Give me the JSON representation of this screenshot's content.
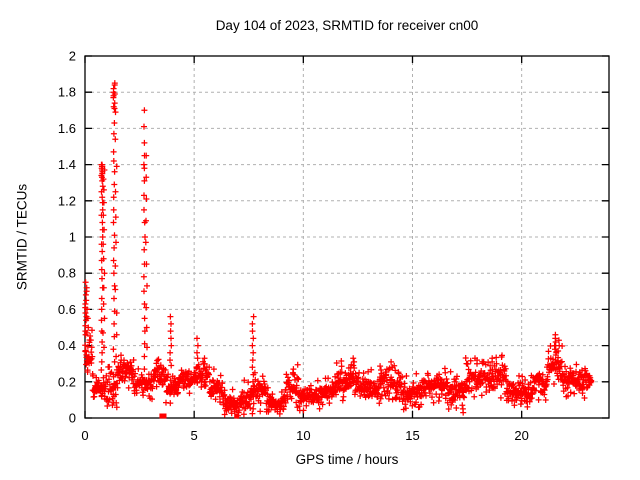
{
  "chart_data": {
    "type": "scatter",
    "title": "Day 104 of 2023, SRMTID for receiver cn00",
    "xlabel": "GPS time / hours",
    "ylabel": "SRMTID / TECUs",
    "xlim": [
      0,
      24
    ],
    "ylim": [
      0,
      2
    ],
    "xticks": [
      0,
      5,
      10,
      15,
      20
    ],
    "yticks": [
      0,
      0.2,
      0.4,
      0.6,
      0.8,
      1,
      1.2,
      1.4,
      1.6,
      1.8,
      2
    ],
    "grid": true,
    "legend": "none",
    "marker": "plus",
    "marker_color": "#ff0000",
    "grid_color": "#b0b0b0",
    "axis_color": "#000000",
    "background": "#ffffff",
    "seed": 104,
    "data_end_hour": 23.2,
    "segment_format": [
      "t0",
      "t1",
      "base",
      "amp",
      "n"
    ],
    "baseline_segments": [
      [
        0.0,
        0.35,
        0.33,
        0.09,
        32
      ],
      [
        0.35,
        0.9,
        0.17,
        0.06,
        40
      ],
      [
        0.9,
        1.5,
        0.16,
        0.07,
        44
      ],
      [
        1.5,
        2.25,
        0.26,
        0.06,
        55
      ],
      [
        2.25,
        3.1,
        0.19,
        0.06,
        60
      ],
      [
        3.1,
        3.7,
        0.23,
        0.06,
        44
      ],
      [
        3.7,
        4.3,
        0.17,
        0.06,
        44
      ],
      [
        4.3,
        5.1,
        0.21,
        0.05,
        58
      ],
      [
        5.1,
        5.7,
        0.24,
        0.06,
        44
      ],
      [
        5.7,
        6.3,
        0.17,
        0.06,
        44
      ],
      [
        6.3,
        7.1,
        0.08,
        0.05,
        58
      ],
      [
        7.1,
        7.7,
        0.11,
        0.06,
        44
      ],
      [
        7.7,
        8.3,
        0.14,
        0.07,
        44
      ],
      [
        8.3,
        9.2,
        0.08,
        0.05,
        65
      ],
      [
        9.2,
        9.8,
        0.17,
        0.07,
        44
      ],
      [
        9.8,
        10.9,
        0.12,
        0.05,
        80
      ],
      [
        10.9,
        11.5,
        0.15,
        0.06,
        44
      ],
      [
        11.5,
        12.6,
        0.2,
        0.07,
        80
      ],
      [
        12.6,
        13.5,
        0.16,
        0.06,
        65
      ],
      [
        13.5,
        14.5,
        0.19,
        0.08,
        72
      ],
      [
        14.5,
        15.5,
        0.14,
        0.06,
        72
      ],
      [
        15.5,
        16.5,
        0.18,
        0.06,
        72
      ],
      [
        16.5,
        17.4,
        0.15,
        0.07,
        65
      ],
      [
        17.4,
        18.3,
        0.21,
        0.07,
        65
      ],
      [
        18.3,
        19.3,
        0.22,
        0.07,
        72
      ],
      [
        19.3,
        20.5,
        0.14,
        0.06,
        86
      ],
      [
        20.5,
        21.2,
        0.2,
        0.07,
        50
      ],
      [
        21.2,
        21.9,
        0.28,
        0.08,
        50
      ],
      [
        21.9,
        22.6,
        0.21,
        0.06,
        50
      ],
      [
        22.6,
        23.2,
        0.2,
        0.06,
        44
      ]
    ],
    "spike_columns": [
      {
        "t": 0.05,
        "ys": [
          0.75,
          0.72,
          0.7,
          0.68,
          0.65,
          0.63,
          0.61,
          0.58,
          0.56,
          0.54,
          0.51,
          0.48,
          0.46
        ]
      },
      {
        "t": 0.12,
        "ys": [
          0.6,
          0.55,
          0.5,
          0.47
        ]
      },
      {
        "t": 0.78,
        "ys": [
          1.4,
          1.4,
          1.39,
          1.39,
          1.38,
          1.38,
          1.37,
          1.36,
          1.35,
          1.34,
          1.33,
          1.31,
          1.28,
          1.25,
          1.22,
          1.19,
          1.15,
          1.12,
          1.08,
          1.04,
          1.0,
          0.96,
          0.92,
          0.87,
          0.82,
          0.77,
          0.72,
          0.66,
          0.6,
          0.54,
          0.48,
          0.42,
          0.36,
          0.31
        ]
      },
      {
        "t": 0.86,
        "ys": [
          1.37,
          1.32,
          1.26,
          1.19,
          1.12,
          1.04,
          0.96,
          0.88,
          0.8,
          0.72,
          0.63,
          0.55,
          0.47,
          0.39
        ]
      },
      {
        "t": 1.33,
        "ys": [
          1.85,
          1.84,
          1.82,
          1.8,
          1.79,
          1.78,
          1.77,
          1.74,
          1.72,
          1.71,
          1.63,
          1.57,
          1.47,
          1.42,
          1.36,
          1.29,
          1.22,
          1.15,
          1.08,
          1.01,
          0.94,
          0.87,
          0.8,
          0.73,
          0.66,
          0.59,
          0.52,
          0.45,
          0.38,
          0.31,
          0.24,
          0.17,
          0.12
        ]
      },
      {
        "t": 1.42,
        "ys": [
          1.69,
          1.54,
          1.39,
          1.25,
          1.11,
          0.97,
          0.84,
          0.71,
          0.58,
          0.46,
          0.34,
          0.24
        ]
      },
      {
        "t": 2.72,
        "ys": [
          1.7,
          1.61,
          1.52,
          1.45,
          1.4,
          1.38,
          1.31,
          1.23,
          1.15,
          1.08,
          1.0,
          0.93,
          0.85,
          0.78,
          0.7,
          0.63,
          0.55,
          0.48,
          0.41,
          0.34,
          0.27,
          0.21
        ]
      },
      {
        "t": 2.81,
        "ys": [
          1.45,
          1.33,
          1.21,
          1.09,
          0.97,
          0.85,
          0.73,
          0.61,
          0.5,
          0.39
        ]
      },
      {
        "t": 3.92,
        "ys": [
          0.56,
          0.52,
          0.48,
          0.44,
          0.4,
          0.36,
          0.32,
          0.29
        ]
      },
      {
        "t": 5.15,
        "ys": [
          0.44,
          0.4,
          0.36,
          0.33
        ]
      },
      {
        "t": 5.5,
        "ys": [
          0.33,
          0.3
        ]
      },
      {
        "t": 7.7,
        "ys": [
          0.56,
          0.52,
          0.48,
          0.44,
          0.4,
          0.36,
          0.32,
          0.28,
          0.24,
          0.2,
          0.16,
          0.12,
          0.08,
          0.05
        ]
      },
      {
        "t": 9.55,
        "ys": [
          0.27,
          0.25
        ]
      },
      {
        "t": 12.3,
        "ys": [
          0.33,
          0.31,
          0.29
        ]
      },
      {
        "t": 14.05,
        "ys": [
          0.31,
          0.28
        ]
      },
      {
        "t": 17.3,
        "ys": [
          0.03,
          0.05,
          0.07
        ]
      },
      {
        "t": 17.95,
        "ys": [
          0.32,
          0.3
        ]
      },
      {
        "t": 18.65,
        "ys": [
          0.33,
          0.31
        ]
      },
      {
        "t": 21.55,
        "ys": [
          0.46,
          0.44,
          0.42,
          0.4,
          0.38,
          0.36
        ]
      },
      {
        "t": 21.7,
        "ys": [
          0.43,
          0.4,
          0.37
        ]
      }
    ],
    "zero_square_markers": [
      {
        "t": 3.52,
        "y": 0
      },
      {
        "t": 3.62,
        "y": 0
      },
      {
        "t": 6.95,
        "y": 0
      }
    ]
  }
}
